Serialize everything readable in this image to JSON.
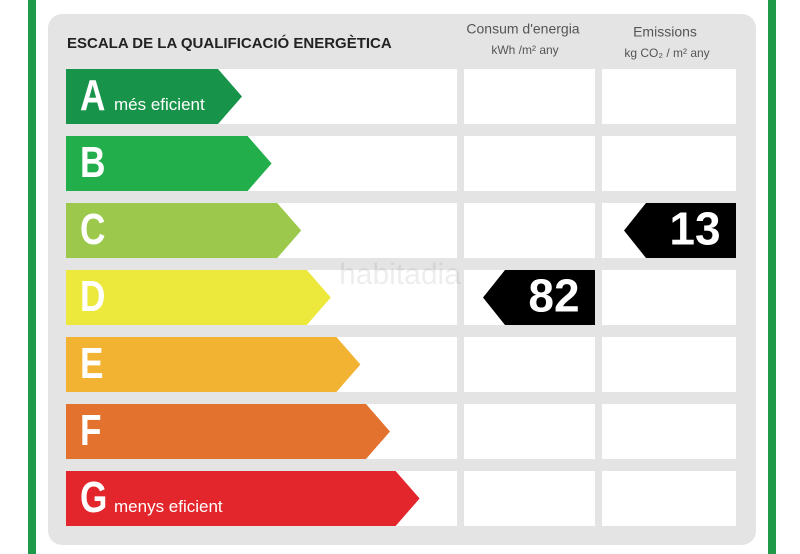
{
  "title": "ESCALA DE LA QUALIFICACIÓ ENERGÈTICA",
  "columns": [
    {
      "title": "Consum d'energia",
      "unit": "kWh /m² any"
    },
    {
      "title": "Emissions",
      "unit": "kg CO₂ / m² any"
    }
  ],
  "ratings": [
    {
      "letter": "A",
      "note": "més eficient",
      "color": "#17944a",
      "consumption": null,
      "emissions": null
    },
    {
      "letter": "B",
      "note": null,
      "color": "#21ae4b",
      "consumption": null,
      "emissions": null
    },
    {
      "letter": "C",
      "note": null,
      "color": "#9cc84b",
      "consumption": null,
      "emissions": 13
    },
    {
      "letter": "D",
      "note": null,
      "color": "#ece83c",
      "consumption": 82,
      "emissions": null
    },
    {
      "letter": "E",
      "note": null,
      "color": "#f2b232",
      "consumption": null,
      "emissions": null
    },
    {
      "letter": "F",
      "note": null,
      "color": "#e2722d",
      "consumption": null,
      "emissions": null
    },
    {
      "letter": "G",
      "note": "menys eficient",
      "color": "#e2262b",
      "consumption": null,
      "emissions": null
    }
  ],
  "watermark": "habitadia"
}
